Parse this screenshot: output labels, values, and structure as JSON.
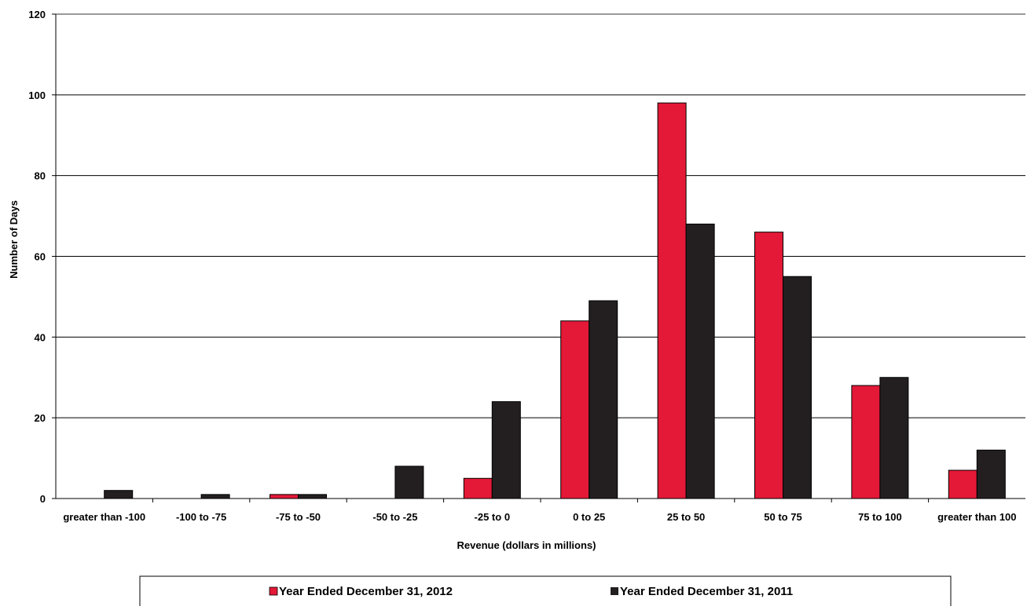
{
  "chart_data": {
    "type": "bar",
    "title": "",
    "xlabel": "Revenue (dollars in millions)",
    "ylabel": "Number of Days",
    "ylim": [
      0,
      120
    ],
    "yticks": [
      "0",
      "20",
      "40",
      "60",
      "80",
      "100",
      "120"
    ],
    "ytick_values": [
      0,
      20,
      40,
      60,
      80,
      100,
      120
    ],
    "grid": "horizontal",
    "legend_position": "bottom",
    "categories": [
      "greater than -100",
      "-100 to -75",
      "-75 to -50",
      "-50 to -25",
      "-25 to 0",
      "0 to 25",
      "25 to 50",
      "50 to 75",
      "75 to 100",
      "greater than 100"
    ],
    "series": [
      {
        "name": "Year Ended December 31, 2012",
        "color": "#e31937",
        "values": [
          0,
          0,
          1,
          0,
          5,
          44,
          98,
          66,
          28,
          7
        ]
      },
      {
        "name": "Year Ended December 31, 2011",
        "color": "#231f20",
        "values": [
          2,
          1,
          1,
          8,
          24,
          49,
          68,
          55,
          30,
          12
        ]
      }
    ]
  }
}
